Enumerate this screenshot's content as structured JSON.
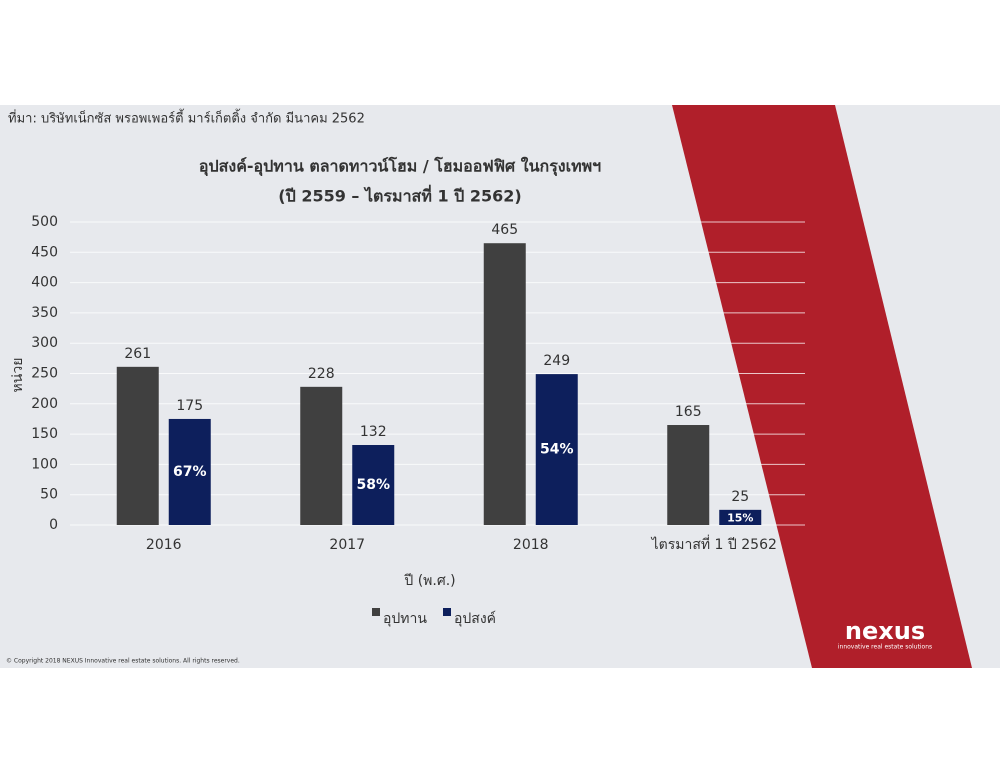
{
  "source": "ที่มา: บริษัทเน็กซัส พรอพเพอร์ตี้ มาร์เก็ตติ้ง จำกัด มีนาคม 2562",
  "logo": {
    "name": "nexus",
    "tagline": "innovative real estate solutions"
  },
  "copyright": "© Copyright 2018 NEXUS Innovative real estate solutions. All rights reserved.",
  "chart_data": {
    "type": "bar",
    "title": [
      "อุปสงค์-อุปทาน ตลาดทาวน์โฮม / โฮมออฟฟิศ ในกรุงเทพฯ",
      "(ปี 2559 – ไตรมาสที่ 1 ปี 2562)"
    ],
    "x_label": "ปี (พ.ศ.)",
    "y_label": "หน่วย",
    "categories": [
      "2016",
      "2017",
      "2018",
      "ไตรมาสที่ 1 ปี 2562"
    ],
    "series": [
      {
        "name": "อุปทาน",
        "color": "#404040",
        "values": [
          261,
          228,
          465,
          165
        ]
      },
      {
        "name": "อุปสงค์",
        "color": "#0d1f5c",
        "values": [
          175,
          132,
          249,
          25
        ]
      }
    ],
    "ratio_labels": [
      "67%",
      "58%",
      "54%",
      "15%"
    ],
    "ylim": [
      0,
      500
    ],
    "yticks": [
      0,
      50,
      100,
      150,
      200,
      250,
      300,
      350,
      400,
      450,
      500
    ],
    "grid": true,
    "legend": "bottom"
  }
}
